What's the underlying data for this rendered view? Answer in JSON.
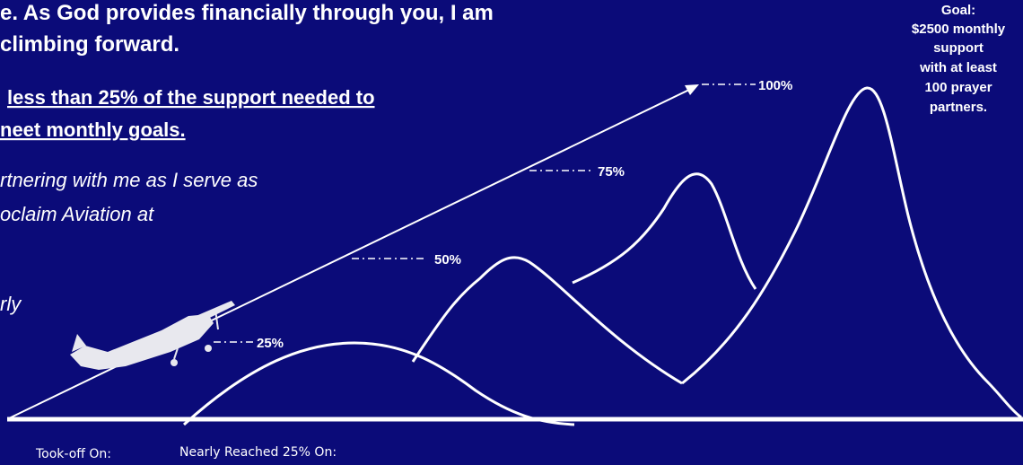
{
  "intro": {
    "lines": [
      "e. As God provides financially through you, I am",
      "climbing forward."
    ]
  },
  "status": {
    "lines": [
      "less than 25% of the support needed to",
      "neet monthly goals."
    ]
  },
  "invite": {
    "lines": [
      "rtnering with me as I serve as",
      "oclaim Aviation at",
      "rly"
    ]
  },
  "goal": {
    "lines": [
      "Goal:",
      "$2500 monthly",
      "support",
      "with at least",
      "100 prayer",
      "partners."
    ]
  },
  "milestones": [
    "25%",
    "50%",
    "75%",
    "100%"
  ],
  "footer": {
    "took_off": "Took-off On:",
    "nearly_reached": "Nearly Reached 25% On:"
  }
}
